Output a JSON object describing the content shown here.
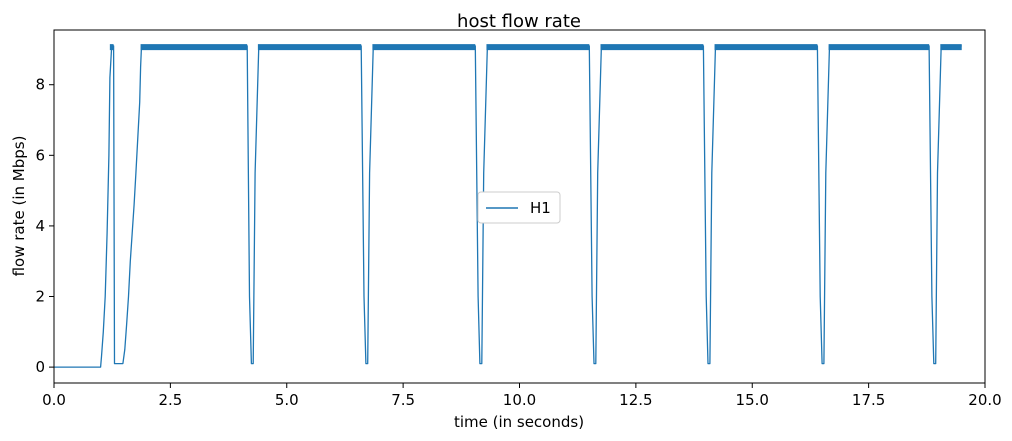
{
  "chart_data": {
    "type": "line",
    "title": "host flow rate",
    "xlabel": "time (in seconds)",
    "ylabel": "flow rate (in Mbps)",
    "xlim": [
      0,
      20
    ],
    "ylim": [
      -0.45,
      9.55
    ],
    "xticks": [
      0,
      2.5,
      5,
      7.5,
      10,
      12.5,
      15,
      17.5,
      20
    ],
    "xtick_labels": [
      "0.0",
      "2.5",
      "5.0",
      "7.5",
      "10.0",
      "12.5",
      "15.0",
      "17.5",
      "20.0"
    ],
    "yticks": [
      0,
      2,
      4,
      6,
      8
    ],
    "ytick_labels": [
      "0",
      "2",
      "4",
      "6",
      "8"
    ],
    "grid": false,
    "legend_position": "center",
    "series": [
      {
        "name": "H1",
        "color": "#1f77b4",
        "x": [
          0,
          1.0,
          1.02,
          1.06,
          1.1,
          1.14,
          1.18,
          1.2,
          1.24,
          1.28,
          1.3,
          1.34,
          1.4,
          1.48,
          1.52,
          1.56,
          1.6,
          1.64,
          1.68,
          1.72,
          1.76,
          1.8,
          1.84,
          1.86,
          1.88,
          2.0,
          4.15,
          4.2,
          4.24,
          4.28,
          4.32,
          4.4,
          6.6,
          6.66,
          6.7,
          6.74,
          6.78,
          6.86,
          9.05,
          9.11,
          9.15,
          9.19,
          9.23,
          9.31,
          11.5,
          11.56,
          11.6,
          11.64,
          11.68,
          11.76,
          13.95,
          14.01,
          14.05,
          14.09,
          14.13,
          14.21,
          16.4,
          16.46,
          16.5,
          16.54,
          16.58,
          16.66,
          18.8,
          18.86,
          18.9,
          18.94,
          18.98,
          19.06,
          19.5
        ],
        "y": [
          0,
          0,
          0.3,
          1.0,
          2.0,
          3.8,
          6.0,
          8.2,
          9.1,
          9.1,
          0.1,
          0.1,
          0.1,
          0.1,
          0.5,
          1.2,
          2.0,
          3.0,
          3.8,
          4.6,
          5.5,
          6.5,
          7.5,
          8.5,
          9.1,
          9.1,
          9.1,
          2.0,
          0.1,
          0.1,
          5.5,
          9.1,
          9.1,
          2.0,
          0.1,
          0.1,
          5.5,
          9.1,
          9.1,
          2.0,
          0.1,
          0.1,
          5.5,
          9.1,
          9.1,
          2.0,
          0.1,
          0.1,
          5.5,
          9.1,
          9.1,
          2.0,
          0.1,
          0.1,
          5.5,
          9.1,
          9.1,
          2.0,
          0.1,
          0.1,
          5.5,
          9.1,
          9.1,
          2.0,
          0.1,
          0.1,
          5.5,
          9.1,
          9.1
        ],
        "plateau_band": [
          8.98,
          9.15
        ],
        "plateau_segments": [
          [
            1.2,
            1.28
          ],
          [
            1.86,
            4.15
          ],
          [
            4.38,
            6.6
          ],
          [
            6.84,
            9.05
          ],
          [
            9.29,
            11.5
          ],
          [
            11.74,
            13.95
          ],
          [
            14.19,
            16.4
          ],
          [
            16.64,
            18.8
          ],
          [
            19.04,
            19.5
          ]
        ]
      }
    ]
  }
}
